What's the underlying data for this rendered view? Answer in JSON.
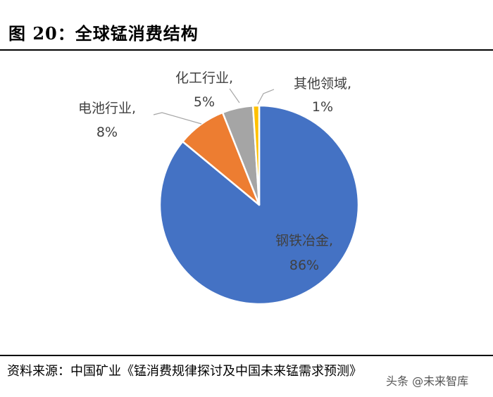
{
  "title": "图 20：全球锰消费结构",
  "source": "资料来源：中国矿业《锰消费规律探讨及中国未来锰需求预测》",
  "watermark": "头条 @未来智库",
  "chart_data": {
    "type": "pie",
    "title": "图 20：全球锰消费结构",
    "slices": [
      {
        "name": "钢铁冶金",
        "value": 86,
        "label": "86%",
        "color": "#4472C4"
      },
      {
        "name": "电池行业",
        "value": 8,
        "label": "8%",
        "color": "#ED7D31"
      },
      {
        "name": "化工行业",
        "value": 5,
        "label": "5%",
        "color": "#A5A5A5"
      },
      {
        "name": "其他领域",
        "value": 1,
        "label": "1%",
        "color": "#FFC000"
      }
    ],
    "label_separator": ",",
    "start_angle_deg": 90,
    "direction": "clockwise"
  }
}
